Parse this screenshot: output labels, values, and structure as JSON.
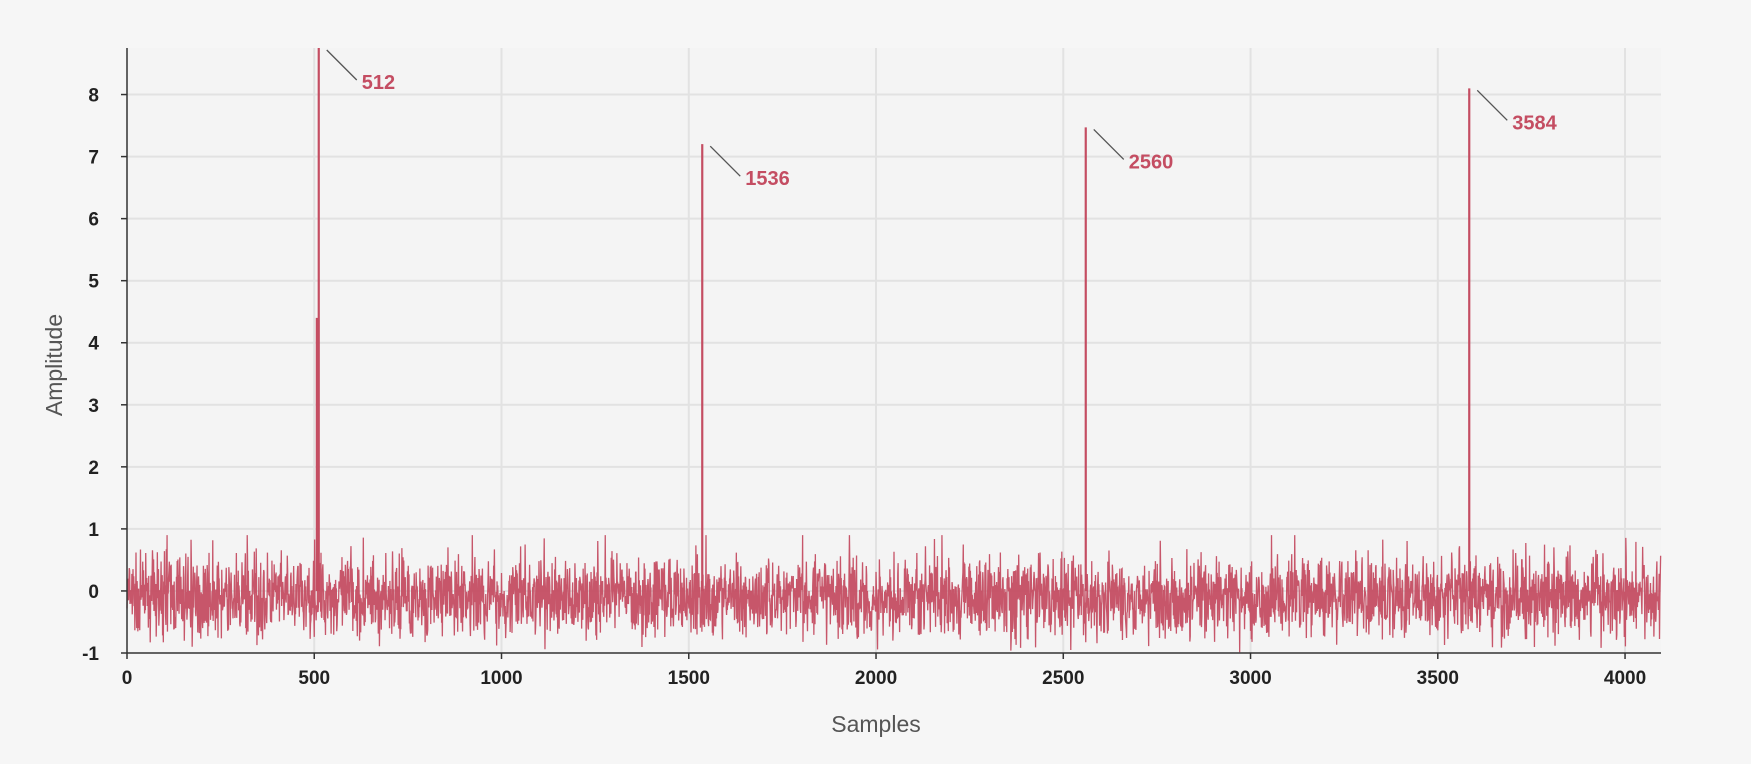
{
  "chart_data": {
    "type": "line",
    "title": "",
    "xlabel": "Samples",
    "ylabel": "Amplitude",
    "xlim": [
      0,
      4096
    ],
    "ylim": [
      -1,
      8.75
    ],
    "xticks": [
      0,
      500,
      1000,
      1500,
      2000,
      2500,
      3000,
      3500,
      4000
    ],
    "yticks": [
      -1,
      0,
      1,
      2,
      3,
      4,
      5,
      6,
      7,
      8
    ],
    "grid": true,
    "series_color": "#c44d62",
    "noise": {
      "n_samples": 4096,
      "baseline": -0.1,
      "typical_range": [
        -0.75,
        0.55
      ],
      "extreme_range": [
        -1,
        0.9
      ]
    },
    "peaks": [
      {
        "x": 507,
        "y": 4.4
      },
      {
        "x": 512,
        "y": 8.75
      },
      {
        "x": 1536,
        "y": 7.2
      },
      {
        "x": 2560,
        "y": 7.47
      },
      {
        "x": 3584,
        "y": 8.1
      }
    ],
    "annotations": [
      {
        "label": "512",
        "x": 512,
        "y": 8.75
      },
      {
        "label": "1536",
        "x": 1536,
        "y": 7.2
      },
      {
        "label": "2560",
        "x": 2560,
        "y": 7.47
      },
      {
        "label": "3584",
        "x": 3584,
        "y": 8.1
      }
    ]
  }
}
